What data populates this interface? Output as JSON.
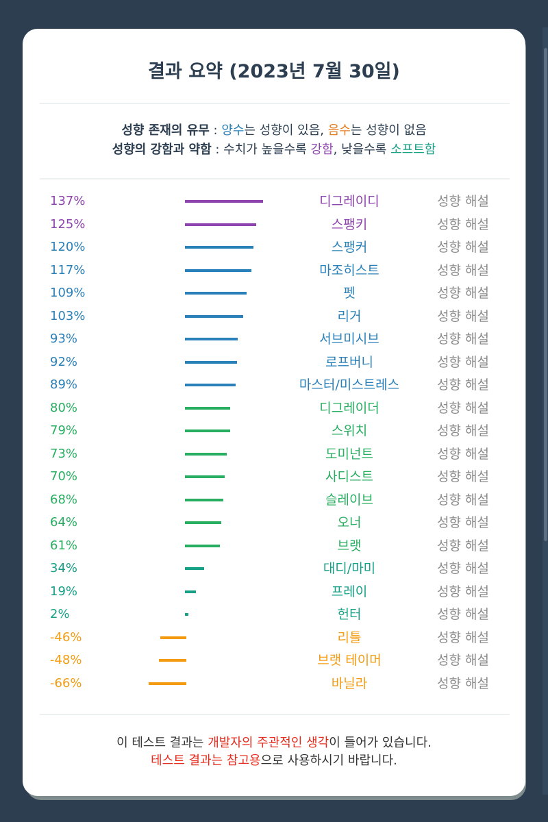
{
  "title": "결과 요약 (2023년 7월 30일)",
  "legend": {
    "line1": {
      "label": "성향 존재의 유무",
      "sep": " : ",
      "pos_word": "양수",
      "pos_text": "는 성향이 있음, ",
      "neg_word": "음수",
      "neg_text": "는 성향이 없음"
    },
    "line2": {
      "label": "성향의 강함과 약함",
      "sep": " : 수치가 높을수록 ",
      "strong_word": "강함",
      "mid_text": ", 낮을수록 ",
      "soft_word": "소프트함"
    }
  },
  "link_label": "성향 해설",
  "chart_data": {
    "type": "bar",
    "orientation": "horizontal",
    "unit": "%",
    "categories": [
      "디그레이디",
      "스팽키",
      "스팽커",
      "마조히스트",
      "펫",
      "리거",
      "서브미시브",
      "로프버니",
      "마스터/미스트레스",
      "디그레이더",
      "스위치",
      "도미넌트",
      "사디스트",
      "슬레이브",
      "오너",
      "브랫",
      "대디/마미",
      "프레이",
      "헌터",
      "리틀",
      "브랫 테이머",
      "바닐라"
    ],
    "values": [
      137,
      125,
      120,
      117,
      109,
      103,
      93,
      92,
      89,
      80,
      79,
      73,
      70,
      68,
      64,
      61,
      34,
      19,
      2,
      -46,
      -48,
      -66
    ],
    "labels": [
      "137%",
      "125%",
      "120%",
      "117%",
      "109%",
      "103%",
      "93%",
      "92%",
      "89%",
      "80%",
      "79%",
      "73%",
      "70%",
      "68%",
      "64%",
      "61%",
      "34%",
      "19%",
      "2%",
      "-46%",
      "-48%",
      "-66%"
    ],
    "colors": [
      "#8e44ad",
      "#8e44ad",
      "#2a80b9",
      "#2a80b9",
      "#2a80b9",
      "#2a80b9",
      "#2a80b9",
      "#2a80b9",
      "#2a80b9",
      "#27ae60",
      "#27ae60",
      "#27ae60",
      "#27ae60",
      "#27ae60",
      "#27ae60",
      "#27ae60",
      "#16a085",
      "#16a085",
      "#16a085",
      "#f39c12",
      "#f39c12",
      "#f39c12"
    ],
    "xlim": [
      -100,
      150
    ]
  },
  "footer": {
    "line1_a": "이 테스트 결과는 ",
    "line1_red": "개발자의 주관적인 생각",
    "line1_b": "이 들어가 있습니다.",
    "line2_red": "테스트 결과는 참고용",
    "line2_b": "으로 사용하시기 바랍니다."
  }
}
